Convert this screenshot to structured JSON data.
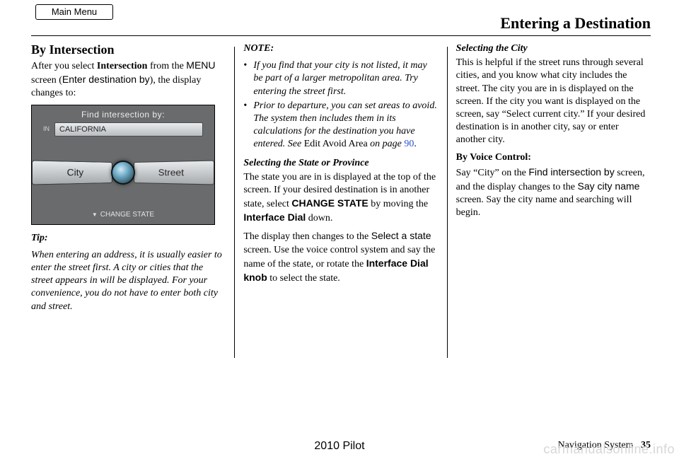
{
  "main_menu_label": "Main Menu",
  "page_title": "Entering a Destination",
  "col1": {
    "heading": "By Intersection",
    "intro_pre": "After you select ",
    "intro_bold": "Intersection",
    "intro_mid": " from the ",
    "intro_sans1": "MENU",
    "intro_mid2": " screen (",
    "intro_sans2": "Enter destination by",
    "intro_end": "), the display changes to:",
    "navshot": {
      "title": "Find intersection by:",
      "in_label": "IN",
      "state_value": "CALIFORNIA",
      "btn_left": "City",
      "btn_right": "Street",
      "change_state": "CHANGE STATE"
    },
    "tip_label": "Tip:",
    "tip_body": "When entering an address, it is usually easier to enter the street first. A city or cities that the street appears in will be displayed. For your convenience, you do not have to enter both city and street."
  },
  "col2": {
    "note_label": "NOTE:",
    "notes": [
      "If you find that your city is not listed, it may be part of a larger metropolitan area. Try entering the street first.",
      ""
    ],
    "note2_pre": "Prior to departure, you can set areas to avoid. The system then includes them in its calculations for the destination you have entered. See ",
    "note2_normal": "Edit Avoid Area",
    "note2_mid": " on page ",
    "note2_page": "90",
    "note2_end": ".",
    "sub1": "Selecting the State or Province",
    "p1_pre": "The state you are in is displayed at the top of the screen. If your desired destination is in another state, select ",
    "p1_bold1": "CHANGE STATE",
    "p1_mid": " by moving the ",
    "p1_bold2": "Interface Dial",
    "p1_end": " down.",
    "p2_pre": "The display then changes to the ",
    "p2_sans": "Select a state",
    "p2_mid": " screen. Use the voice control system and say the name of the state, or rotate the ",
    "p2_bold": "Interface Dial knob",
    "p2_end": " to select the state."
  },
  "col3": {
    "sub": "Selecting the City",
    "p1": "This is helpful if the street runs through several cities, and you know what city includes the street. The city you are in is displayed on the screen. If the city you want is displayed on the screen, say “Select current city.” If your desired destination is in another city, say or enter another city.",
    "voice_label": "By Voice Control:",
    "p2_pre": "Say “City” on the ",
    "p2_sans1": "Find intersection by",
    "p2_mid1": " screen, and the display changes to the ",
    "p2_sans2": "Say city name",
    "p2_end": " screen. Say the city name and searching will begin."
  },
  "footer": {
    "model": "2010 Pilot",
    "section": "Navigation System",
    "page": "35"
  },
  "watermark": "carmanualsonline.info",
  "colors": {
    "link": "#2a4fd0",
    "watermark": "#d6d6d6"
  }
}
